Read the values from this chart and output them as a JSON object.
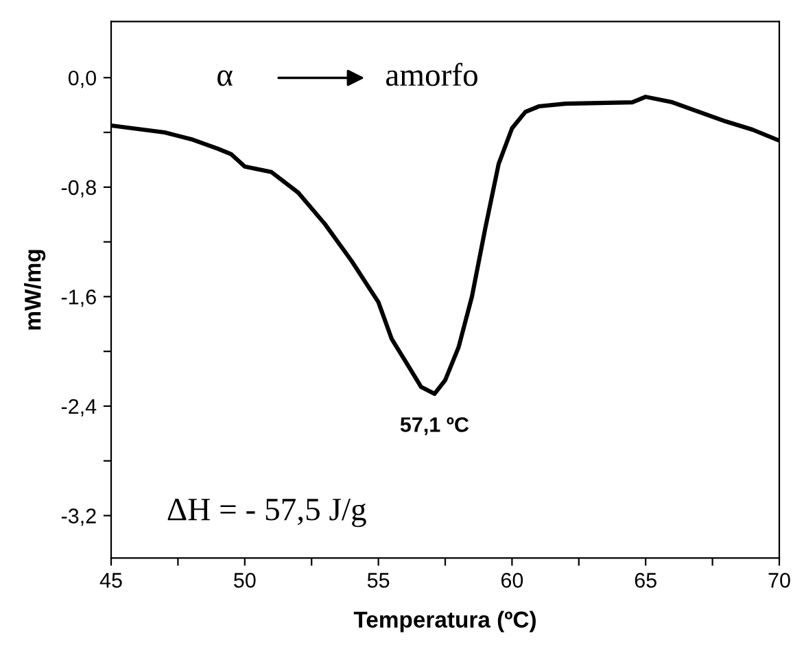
{
  "chart_data": {
    "type": "line",
    "xlabel": "Temperatura (ºC)",
    "ylabel": "mW/mg",
    "x": [
      45,
      47,
      48,
      49,
      49.5,
      50,
      50.5,
      51,
      52,
      53,
      54,
      55,
      55.5,
      56.1,
      56.6,
      57.1,
      57.5,
      58,
      58.5,
      59,
      59.5,
      60,
      60.5,
      61,
      62,
      64.5,
      65,
      66,
      67,
      68,
      69,
      70
    ],
    "series": [
      {
        "color": "#000000",
        "values": [
          -0.35,
          -0.4,
          -0.45,
          -0.52,
          -0.56,
          -0.65,
          -0.67,
          -0.69,
          -0.84,
          -1.07,
          -1.34,
          -1.64,
          -1.91,
          -2.1,
          -2.26,
          -2.31,
          -2.21,
          -1.97,
          -1.6,
          -1.1,
          -0.63,
          -0.37,
          -0.25,
          -0.21,
          -0.19,
          -0.18,
          -0.14,
          -0.18,
          -0.25,
          -0.32,
          -0.38,
          -0.46
        ]
      }
    ],
    "xlim": [
      45,
      70
    ],
    "ylim": [
      -3.51,
      0.41
    ],
    "xticks": [
      45,
      {
        "value": 47.5,
        "label": null
      },
      50,
      {
        "value": 52.5,
        "label": null
      },
      55,
      {
        "value": 57.5,
        "label": null
      },
      60,
      {
        "value": 62.5,
        "label": null
      },
      65,
      {
        "value": 67.5,
        "label": null
      },
      70
    ],
    "yticks": [
      {
        "value": -3.2,
        "label": "-3,2"
      },
      {
        "value": -2.8,
        "label": null
      },
      {
        "value": -2.4,
        "label": "-2,4"
      },
      {
        "value": -2.0,
        "label": null
      },
      {
        "value": -1.6,
        "label": "-1,6"
      },
      {
        "value": -1.2,
        "label": null
      },
      {
        "value": -0.8,
        "label": "-0,8"
      },
      {
        "value": -0.4,
        "label": null
      },
      {
        "value": 0.0,
        "label": "0,0"
      }
    ],
    "annotations": [
      "α",
      "amorfo",
      {
        "text": "57,1 ºC",
        "x": 57.1,
        "y": -2.31
      },
      "ΔH = - 57,5 J/g"
    ],
    "grid": false,
    "legend": false,
    "marker": "none",
    "line_style": "solid"
  }
}
